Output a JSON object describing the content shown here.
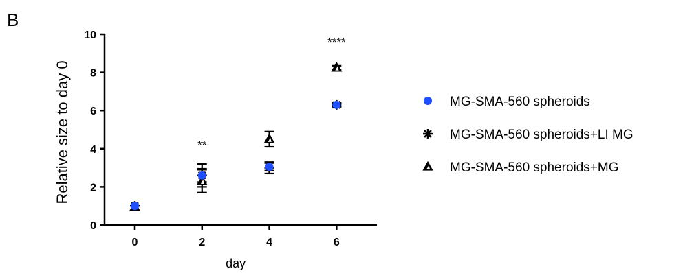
{
  "panel_label": "B",
  "colors": {
    "axis": "#000000",
    "control_marker": "#1f4fff",
    "treated_marker": "#000000",
    "background": "#ffffff"
  },
  "chart_data": {
    "type": "scatter",
    "xlabel": "day",
    "ylabel": "Relative size to day 0",
    "x": [
      0,
      2,
      4,
      6
    ],
    "x_ticks": [
      "0",
      "2",
      "4",
      "6"
    ],
    "y_ticks": [
      "0",
      "2",
      "4",
      "6",
      "8",
      "10"
    ],
    "xlim": [
      -0.9,
      7.2
    ],
    "ylim": [
      0,
      10
    ],
    "grid": false,
    "legend_position": "right",
    "series": [
      {
        "name": "MG-SMA-560 spheroids",
        "marker": "circle",
        "values": [
          1.0,
          2.6,
          3.05,
          6.3
        ],
        "err": [
          0.05,
          0.35,
          0.2,
          0.1
        ]
      },
      {
        "name": "MG-SMA-560 spheroids+LI MG",
        "marker": "asterisk",
        "values": [
          1.0,
          2.6,
          3.0,
          6.3
        ],
        "err": [
          0.05,
          0.6,
          0.3,
          0.1
        ]
      },
      {
        "name": "MG-SMA-560 spheroids+MG",
        "marker": "triangle",
        "values": [
          0.95,
          2.3,
          4.5,
          8.25
        ],
        "err": [
          0.05,
          0.6,
          0.4,
          0.1
        ]
      }
    ],
    "annotations": [
      {
        "x": 2,
        "y": 4.2,
        "text": "**"
      },
      {
        "x": 6,
        "y": 9.6,
        "text": "****"
      }
    ]
  }
}
